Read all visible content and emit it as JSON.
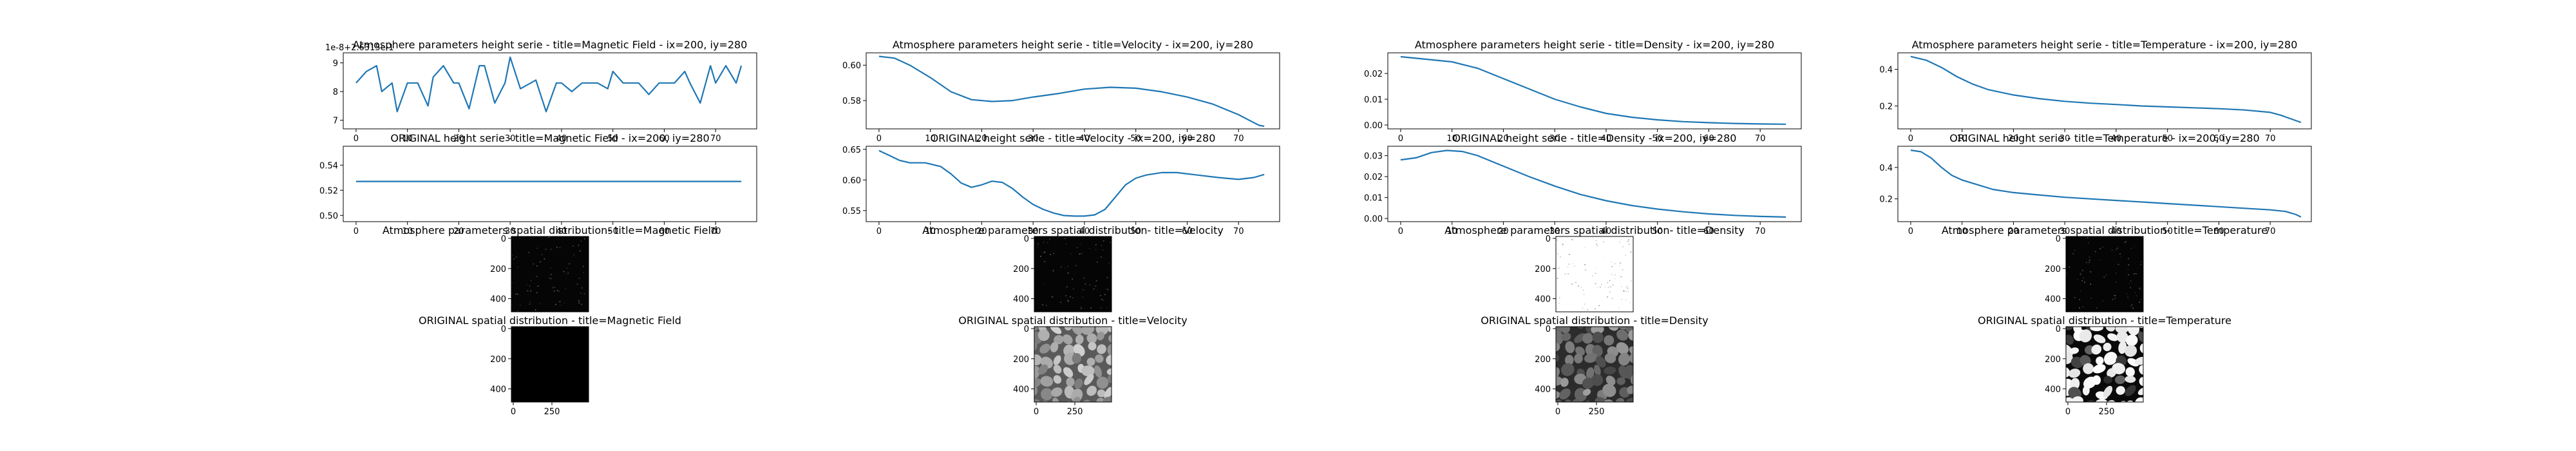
{
  "figure": {
    "style": {
      "line_color": "#1f77b4",
      "axis_color": "#000000",
      "background": "#ffffff"
    },
    "columns": [
      {
        "key": "magnetic_field",
        "atmo_line_title": "Atmosphere parameters height serie - title=Magnetic Field - ix=200, iy=280",
        "orig_line_title": "ORIGINAL height serie - title=Magnetic Field - ix=200, iy=280",
        "atmo_img_title": "Atmosphere parameters spatial distribution- title=Magnetic Field",
        "orig_img_title": "ORIGINAL spatial distribution - title=Magnetic Field",
        "atmo_offset_text": "1e-8+2.6315e-1",
        "atmo_img_kind": "dark_noise",
        "orig_img_kind": "black"
      },
      {
        "key": "velocity",
        "atmo_line_title": "Atmosphere parameters height serie - title=Velocity - ix=200, iy=280",
        "orig_line_title": "ORIGINAL height serie - title=Velocity - ix=200, iy=280",
        "atmo_img_title": "Atmosphere parameters spatial distribution- title=Velocity",
        "orig_img_title": "ORIGINAL spatial distribution - title=Velocity",
        "atmo_offset_text": "",
        "atmo_img_kind": "dark_noise",
        "orig_img_kind": "granulation_gray"
      },
      {
        "key": "density",
        "atmo_line_title": "Atmosphere parameters height serie - title=Density - ix=200, iy=280",
        "orig_line_title": "ORIGINAL height serie - title=Density - ix=200, iy=280",
        "atmo_img_title": "Atmosphere parameters spatial distribution- title=Density",
        "orig_img_title": "ORIGINAL spatial distribution - title=Density",
        "atmo_offset_text": "",
        "atmo_img_kind": "light_noise",
        "orig_img_kind": "granulation_dark"
      },
      {
        "key": "temperature",
        "atmo_line_title": "Atmosphere parameters height serie - title=Temperature - ix=200, iy=280",
        "orig_line_title": "ORIGINAL height serie - title=Temperature - ix=200, iy=280",
        "atmo_img_title": "Atmosphere parameters spatial distribution- title=Temperature",
        "orig_img_title": "ORIGINAL spatial distribution - title=Temperature",
        "atmo_offset_text": "",
        "atmo_img_kind": "dark_noise",
        "orig_img_kind": "granulation_bw"
      }
    ],
    "image_axes": {
      "atmo_yticks": [
        "0",
        "200",
        "400"
      ],
      "orig_yticks": [
        "0",
        "200",
        "400"
      ],
      "orig_xticks": [
        "0",
        "250"
      ]
    }
  },
  "chart_data": [
    {
      "type": "line",
      "title": "Atmosphere parameters height serie - title=Magnetic Field - ix=200, iy=280",
      "x": [
        0,
        2,
        4,
        5,
        7,
        8,
        10,
        12,
        14,
        15,
        17,
        19,
        20,
        22,
        24,
        25,
        27,
        29,
        30,
        32,
        34,
        35,
        37,
        39,
        40,
        42,
        44,
        45,
        47,
        49,
        50,
        52,
        54,
        55,
        57,
        59,
        60,
        62,
        64,
        65,
        67,
        69,
        70,
        72,
        74,
        75
      ],
      "y": [
        8.3,
        8.7,
        8.9,
        8.0,
        8.3,
        7.3,
        8.3,
        8.3,
        7.5,
        8.5,
        8.9,
        8.3,
        8.3,
        7.4,
        8.9,
        8.9,
        7.6,
        8.3,
        9.2,
        8.1,
        8.3,
        8.4,
        7.3,
        8.3,
        8.3,
        8.0,
        8.3,
        8.3,
        8.3,
        8.1,
        8.7,
        8.3,
        8.3,
        8.3,
        7.9,
        8.3,
        8.3,
        8.3,
        8.7,
        8.3,
        7.6,
        8.9,
        8.3,
        8.9,
        8.3,
        8.9
      ],
      "xlim": [
        -2.5,
        78
      ],
      "ylim": [
        6.7,
        9.35
      ],
      "xticks": [
        "0",
        "10",
        "20",
        "30",
        "40",
        "50",
        "60",
        "70"
      ],
      "yticks": [
        "7",
        "8",
        "9"
      ],
      "ytick_values": [
        7,
        8,
        9
      ],
      "xlabel": "",
      "ylabel": "",
      "grid": false
    },
    {
      "type": "line",
      "title": "ORIGINAL height serie - title=Magnetic Field - ix=200, iy=280",
      "x": [
        0,
        75
      ],
      "y": [
        0.527,
        0.527
      ],
      "xlim": [
        -2.5,
        78
      ],
      "ylim": [
        0.495,
        0.555
      ],
      "xticks": [
        "0",
        "10",
        "20",
        "30",
        "40",
        "50",
        "60",
        "70"
      ],
      "yticks": [
        "0.50",
        "0.52",
        "0.54"
      ],
      "ytick_values": [
        0.5,
        0.52,
        0.54
      ],
      "xlabel": "",
      "ylabel": "",
      "grid": false
    },
    {
      "type": "line",
      "title": "Atmosphere parameters height serie - title=Velocity - ix=200, iy=280",
      "x": [
        0,
        3,
        6,
        10,
        14,
        18,
        22,
        26,
        30,
        35,
        40,
        45,
        50,
        55,
        60,
        65,
        70,
        72,
        74,
        75
      ],
      "y": [
        0.605,
        0.604,
        0.6,
        0.593,
        0.585,
        0.5805,
        0.5795,
        0.58,
        0.582,
        0.584,
        0.5865,
        0.5875,
        0.587,
        0.585,
        0.582,
        0.578,
        0.572,
        0.569,
        0.566,
        0.5655
      ],
      "xlim": [
        -2.5,
        78
      ],
      "ylim": [
        0.564,
        0.607
      ],
      "xticks": [
        "0",
        "10",
        "20",
        "30",
        "40",
        "50",
        "60",
        "70"
      ],
      "yticks": [
        "0.58",
        "0.60"
      ],
      "ytick_values": [
        0.58,
        0.6
      ],
      "xlabel": "",
      "ylabel": "",
      "grid": false
    },
    {
      "type": "line",
      "title": "ORIGINAL height serie - title=Velocity - ix=200, iy=280",
      "x": [
        0,
        2,
        4,
        6,
        9,
        12,
        14,
        16,
        18,
        20,
        22,
        24,
        26,
        28,
        30,
        32,
        34,
        36,
        38,
        40,
        42,
        44,
        46,
        48,
        50,
        52,
        55,
        58,
        62,
        66,
        70,
        73,
        75
      ],
      "y": [
        0.648,
        0.64,
        0.632,
        0.628,
        0.628,
        0.622,
        0.61,
        0.595,
        0.588,
        0.592,
        0.598,
        0.596,
        0.586,
        0.572,
        0.56,
        0.552,
        0.546,
        0.542,
        0.541,
        0.541,
        0.543,
        0.552,
        0.572,
        0.592,
        0.603,
        0.608,
        0.612,
        0.612,
        0.608,
        0.604,
        0.601,
        0.604,
        0.609
      ],
      "xlim": [
        -2.5,
        78
      ],
      "ylim": [
        0.532,
        0.655
      ],
      "xticks": [
        "0",
        "10",
        "20",
        "30",
        "40",
        "50",
        "60",
        "70"
      ],
      "yticks": [
        "0.55",
        "0.60",
        "0.65"
      ],
      "ytick_values": [
        0.55,
        0.6,
        0.65
      ],
      "xlabel": "",
      "ylabel": "",
      "grid": false
    },
    {
      "type": "line",
      "title": "Atmosphere parameters height serie - title=Density - ix=200, iy=280",
      "x": [
        0,
        5,
        10,
        15,
        20,
        25,
        30,
        35,
        40,
        45,
        50,
        55,
        60,
        65,
        70,
        75
      ],
      "y": [
        0.0265,
        0.0255,
        0.0245,
        0.022,
        0.018,
        0.014,
        0.01,
        0.007,
        0.0045,
        0.003,
        0.002,
        0.0013,
        0.0009,
        0.0006,
        0.0004,
        0.0003
      ],
      "xlim": [
        -2.5,
        78
      ],
      "ylim": [
        -0.0015,
        0.028
      ],
      "xticks": [
        "0",
        "10",
        "20",
        "30",
        "40",
        "50",
        "60",
        "70"
      ],
      "yticks": [
        "0.00",
        "0.01",
        "0.02"
      ],
      "ytick_values": [
        0.0,
        0.01,
        0.02
      ],
      "xlabel": "",
      "ylabel": "",
      "grid": false
    },
    {
      "type": "line",
      "title": "ORIGINAL height serie - title=Density - ix=200, iy=280",
      "x": [
        0,
        3,
        6,
        9,
        12,
        15,
        20,
        25,
        30,
        35,
        40,
        45,
        50,
        55,
        60,
        65,
        70,
        75
      ],
      "y": [
        0.028,
        0.029,
        0.0315,
        0.0325,
        0.032,
        0.03,
        0.025,
        0.02,
        0.0155,
        0.0115,
        0.0085,
        0.0062,
        0.0045,
        0.0032,
        0.0022,
        0.0015,
        0.001,
        0.0007
      ],
      "xlim": [
        -2.5,
        78
      ],
      "ylim": [
        -0.0015,
        0.0345
      ],
      "xticks": [
        "0",
        "10",
        "20",
        "30",
        "40",
        "50",
        "60",
        "70"
      ],
      "yticks": [
        "0.00",
        "0.01",
        "0.02",
        "0.03"
      ],
      "ytick_values": [
        0.0,
        0.01,
        0.02,
        0.03
      ],
      "xlabel": "",
      "ylabel": "",
      "grid": false
    },
    {
      "type": "line",
      "title": "Atmosphere parameters height serie - title=Temperature - ix=200, iy=280",
      "x": [
        0,
        3,
        6,
        9,
        12,
        15,
        20,
        25,
        30,
        35,
        40,
        45,
        50,
        55,
        60,
        65,
        70,
        72,
        74,
        76
      ],
      "y": [
        0.47,
        0.45,
        0.41,
        0.36,
        0.32,
        0.29,
        0.26,
        0.24,
        0.225,
        0.215,
        0.208,
        0.2,
        0.195,
        0.19,
        0.185,
        0.178,
        0.165,
        0.15,
        0.13,
        0.11
      ],
      "xlim": [
        -2.5,
        78
      ],
      "ylim": [
        0.075,
        0.49
      ],
      "xticks": [
        "0",
        "10",
        "20",
        "30",
        "40",
        "50",
        "60",
        "70"
      ],
      "yticks": [
        "0.2",
        "0.4"
      ],
      "ytick_values": [
        0.2,
        0.4
      ],
      "xlabel": "",
      "ylabel": "",
      "grid": false
    },
    {
      "type": "line",
      "title": "ORIGINAL height serie - title=Temperature - ix=200, iy=280",
      "x": [
        0,
        2,
        4,
        6,
        8,
        10,
        13,
        16,
        20,
        25,
        30,
        35,
        40,
        45,
        50,
        55,
        60,
        65,
        70,
        73,
        75,
        76
      ],
      "y": [
        0.51,
        0.5,
        0.46,
        0.4,
        0.35,
        0.32,
        0.29,
        0.26,
        0.24,
        0.225,
        0.21,
        0.2,
        0.19,
        0.18,
        0.17,
        0.16,
        0.15,
        0.14,
        0.13,
        0.12,
        0.1,
        0.085
      ],
      "xlim": [
        -2.5,
        78
      ],
      "ylim": [
        0.055,
        0.535
      ],
      "xticks": [
        "0",
        "10",
        "20",
        "30",
        "40",
        "50",
        "60",
        "70"
      ],
      "yticks": [
        "0.2",
        "0.4"
      ],
      "ytick_values": [
        0.2,
        0.4
      ],
      "xlabel": "",
      "ylabel": "",
      "grid": false
    }
  ]
}
